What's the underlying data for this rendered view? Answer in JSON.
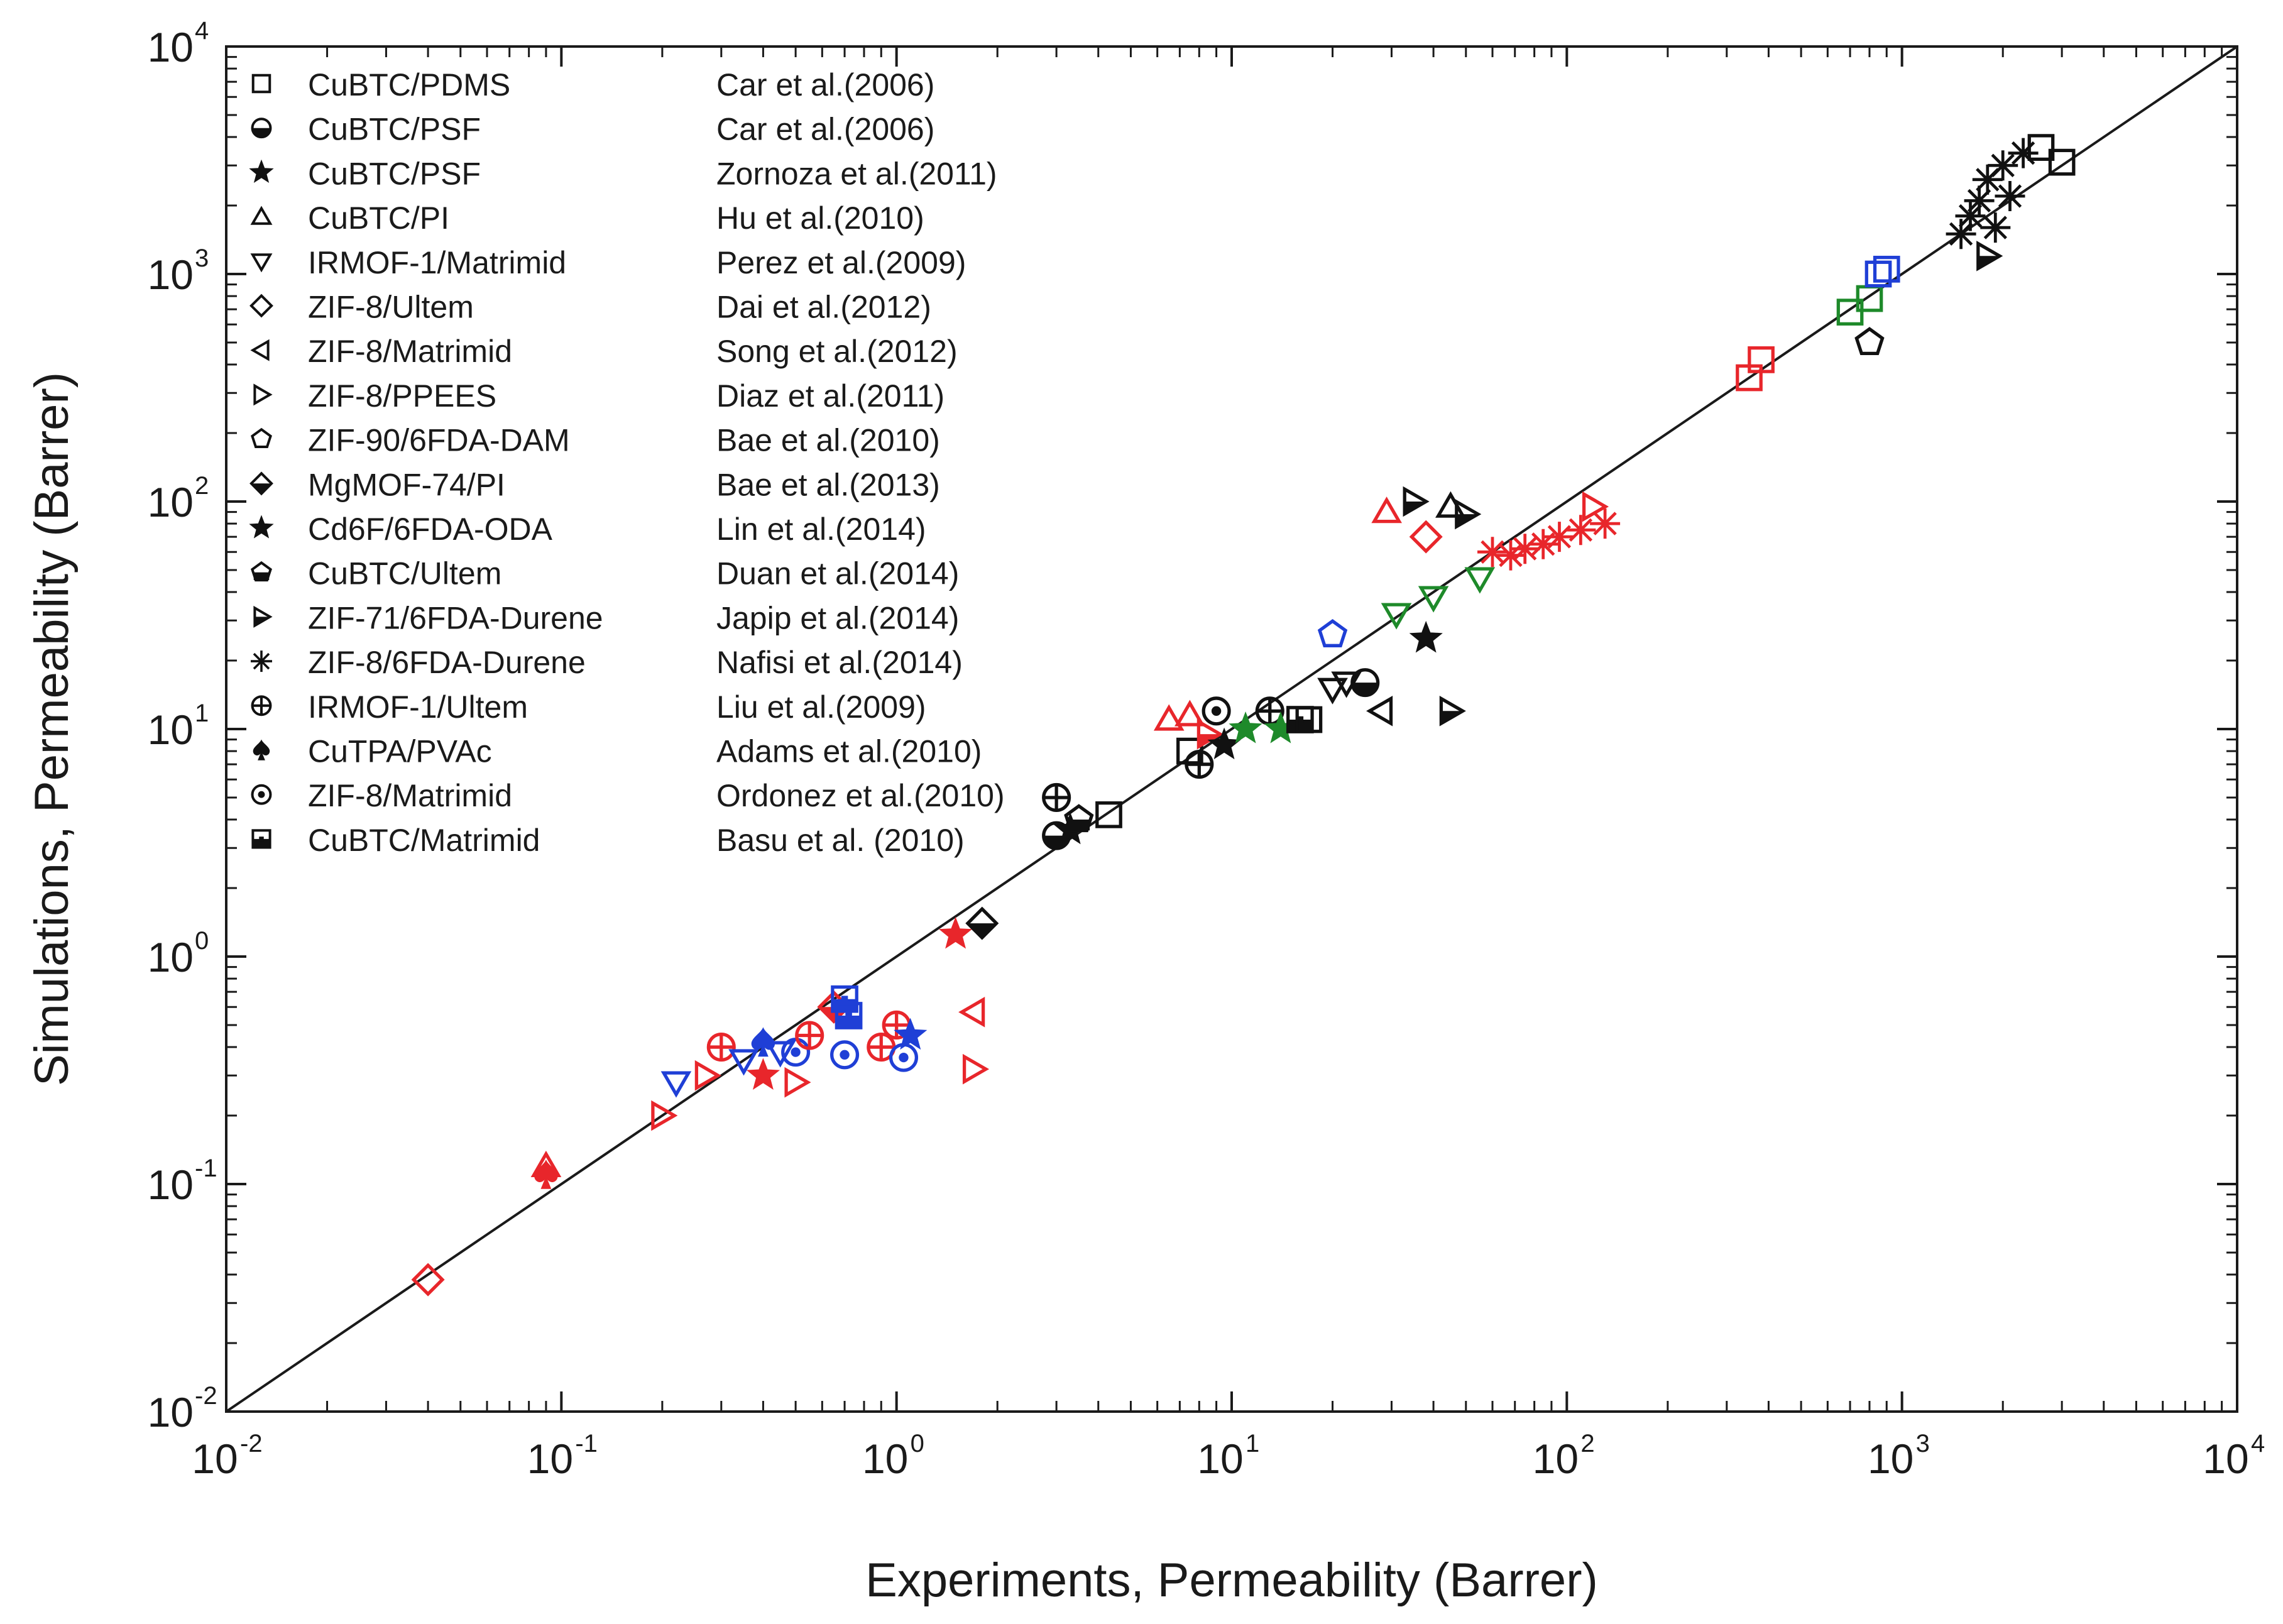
{
  "chart_data": {
    "type": "scatter",
    "title": "",
    "xlabel": "Experiments, Permeability (Barrer)",
    "ylabel": "Simulations, Permeability (Barrer)",
    "xscale": "log",
    "yscale": "log",
    "xlim": [
      0.01,
      10000
    ],
    "ylim": [
      0.01,
      10000
    ],
    "grid": false,
    "legend_position": "top-left",
    "x_ticks": [
      {
        "base": "10",
        "exp": "-2",
        "value": 0.01
      },
      {
        "base": "10",
        "exp": "-1",
        "value": 0.1
      },
      {
        "base": "10",
        "exp": "0",
        "value": 1
      },
      {
        "base": "10",
        "exp": "1",
        "value": 10
      },
      {
        "base": "10",
        "exp": "2",
        "value": 100
      },
      {
        "base": "10",
        "exp": "3",
        "value": 1000
      },
      {
        "base": "10",
        "exp": "4",
        "value": 10000
      }
    ],
    "y_ticks": [
      {
        "base": "10",
        "exp": "-2",
        "value": 0.01
      },
      {
        "base": "10",
        "exp": "-1",
        "value": 0.1
      },
      {
        "base": "10",
        "exp": "0",
        "value": 1
      },
      {
        "base": "10",
        "exp": "1",
        "value": 10
      },
      {
        "base": "10",
        "exp": "2",
        "value": 100
      },
      {
        "base": "10",
        "exp": "3",
        "value": 1000
      },
      {
        "base": "10",
        "exp": "4",
        "value": 10000
      }
    ],
    "parity_line": {
      "from": [
        0.01,
        0.01
      ],
      "to": [
        10000,
        10000
      ]
    },
    "colors": {
      "black": "#111111",
      "red": "#e8262b",
      "blue": "#1f3fd6",
      "green": "#1e8a2a"
    },
    "legend": [
      {
        "label": "CuBTC/PDMS",
        "ref": "Car et al.(2006)",
        "symbol": "square-open-small"
      },
      {
        "label": "CuBTC/PSF",
        "ref": "Car et al.(2006)",
        "symbol": "circle-half"
      },
      {
        "label": "CuBTC/PSF",
        "ref": "Zornoza et al.(2011)",
        "symbol": "star-filled"
      },
      {
        "label": "CuBTC/PI",
        "ref": "Hu et al.(2010)",
        "symbol": "triangle-up-open"
      },
      {
        "label": "IRMOF-1/Matrimid",
        "ref": "Perez et al.(2009)",
        "symbol": "triangle-down-open"
      },
      {
        "label": "ZIF-8/Ultem",
        "ref": "Dai et al.(2012)",
        "symbol": "diamond-open"
      },
      {
        "label": "ZIF-8/Matrimid",
        "ref": "Song et al.(2012)",
        "symbol": "triangle-left-open"
      },
      {
        "label": "ZIF-8/PPEES",
        "ref": "Diaz et al.(2011)",
        "symbol": "triangle-right-open"
      },
      {
        "label": "ZIF-90/6FDA-DAM",
        "ref": "Bae et al.(2010)",
        "symbol": "pentagon-open"
      },
      {
        "label": "MgMOF-74/PI",
        "ref": "Bae et al.(2013)",
        "symbol": "diamond-half"
      },
      {
        "label": "Cd6F/6FDA-ODA",
        "ref": "Lin et al.(2014)",
        "symbol": "star-filled"
      },
      {
        "label": "CuBTC/Ultem",
        "ref": "Duan et al.(2014)",
        "symbol": "pentagon-half"
      },
      {
        "label": "ZIF-71/6FDA-Durene",
        "ref": "Japip et al.(2014)",
        "symbol": "triangle-right-half"
      },
      {
        "label": "ZIF-8/6FDA-Durene",
        "ref": "Nafisi et al.(2014)",
        "symbol": "asterisk"
      },
      {
        "label": "IRMOF-1/Ultem",
        "ref": "Liu et al.(2009)",
        "symbol": "circle-cross"
      },
      {
        "label": "CuTPA/PVAc",
        "ref": "Adams et al.(2010)",
        "symbol": "spade"
      },
      {
        "label": "ZIF-8/Matrimid",
        "ref": "Ordonez et al.(2010)",
        "symbol": "circle-dot"
      },
      {
        "label": "CuBTC/Matrimid",
        "ref": "Basu et al. (2010)",
        "symbol": "square-dot"
      }
    ],
    "points": [
      {
        "x": 0.04,
        "y": 0.038,
        "symbol": "diamond-open",
        "color": "red"
      },
      {
        "x": 0.09,
        "y": 0.12,
        "symbol": "triangle-up-open",
        "color": "red"
      },
      {
        "x": 0.09,
        "y": 0.11,
        "symbol": "spade",
        "color": "red"
      },
      {
        "x": 0.2,
        "y": 0.2,
        "symbol": "triangle-right-open",
        "color": "red"
      },
      {
        "x": 0.22,
        "y": 0.28,
        "symbol": "triangle-down-open",
        "color": "blue"
      },
      {
        "x": 0.27,
        "y": 0.3,
        "symbol": "triangle-right-open",
        "color": "red"
      },
      {
        "x": 0.3,
        "y": 0.4,
        "symbol": "circle-cross",
        "color": "red"
      },
      {
        "x": 0.35,
        "y": 0.35,
        "symbol": "triangle-down-open",
        "color": "blue"
      },
      {
        "x": 0.4,
        "y": 0.3,
        "symbol": "star-filled",
        "color": "red"
      },
      {
        "x": 0.4,
        "y": 0.42,
        "symbol": "spade",
        "color": "blue"
      },
      {
        "x": 0.45,
        "y": 0.38,
        "symbol": "triangle-down-open",
        "color": "blue"
      },
      {
        "x": 0.5,
        "y": 0.28,
        "symbol": "triangle-right-open",
        "color": "red"
      },
      {
        "x": 0.5,
        "y": 0.38,
        "symbol": "circle-dot",
        "color": "blue"
      },
      {
        "x": 0.55,
        "y": 0.45,
        "symbol": "circle-cross",
        "color": "red"
      },
      {
        "x": 0.65,
        "y": 0.6,
        "symbol": "diamond-half",
        "color": "red"
      },
      {
        "x": 0.7,
        "y": 0.37,
        "symbol": "circle-dot",
        "color": "blue"
      },
      {
        "x": 0.7,
        "y": 0.65,
        "symbol": "square-dot",
        "color": "blue"
      },
      {
        "x": 0.72,
        "y": 0.55,
        "symbol": "square-dot",
        "color": "blue"
      },
      {
        "x": 0.9,
        "y": 0.4,
        "symbol": "circle-cross",
        "color": "red"
      },
      {
        "x": 1.0,
        "y": 0.5,
        "symbol": "circle-cross",
        "color": "red"
      },
      {
        "x": 1.05,
        "y": 0.36,
        "symbol": "circle-dot",
        "color": "blue"
      },
      {
        "x": 1.1,
        "y": 0.45,
        "symbol": "star-filled",
        "color": "blue"
      },
      {
        "x": 1.5,
        "y": 1.25,
        "symbol": "star-filled",
        "color": "red"
      },
      {
        "x": 1.7,
        "y": 0.32,
        "symbol": "triangle-right-open",
        "color": "red"
      },
      {
        "x": 1.7,
        "y": 0.57,
        "symbol": "triangle-left-open",
        "color": "red"
      },
      {
        "x": 1.8,
        "y": 1.4,
        "symbol": "diamond-half",
        "color": "black"
      },
      {
        "x": 3.0,
        "y": 3.4,
        "symbol": "circle-half",
        "color": "black"
      },
      {
        "x": 3.0,
        "y": 5.0,
        "symbol": "circle-cross",
        "color": "black"
      },
      {
        "x": 3.3,
        "y": 3.6,
        "symbol": "star-filled",
        "color": "black"
      },
      {
        "x": 3.5,
        "y": 4.0,
        "symbol": "pentagon-half",
        "color": "black"
      },
      {
        "x": 4.3,
        "y": 4.2,
        "symbol": "square-open-small",
        "color": "black"
      },
      {
        "x": 6.5,
        "y": 11.0,
        "symbol": "triangle-up-open",
        "color": "red"
      },
      {
        "x": 7.5,
        "y": 11.5,
        "symbol": "triangle-up-open",
        "color": "red"
      },
      {
        "x": 7.5,
        "y": 8.0,
        "symbol": "square-open-small",
        "color": "black"
      },
      {
        "x": 8.0,
        "y": 7.0,
        "symbol": "circle-cross",
        "color": "black"
      },
      {
        "x": 8.5,
        "y": 9.5,
        "symbol": "triangle-right-half",
        "color": "red"
      },
      {
        "x": 9.0,
        "y": 12.0,
        "symbol": "circle-dot",
        "color": "black"
      },
      {
        "x": 9.5,
        "y": 8.5,
        "symbol": "star-filled",
        "color": "black"
      },
      {
        "x": 11.0,
        "y": 10.0,
        "symbol": "star-filled",
        "color": "green"
      },
      {
        "x": 13.0,
        "y": 12.0,
        "symbol": "circle-cross",
        "color": "black"
      },
      {
        "x": 14.0,
        "y": 10.0,
        "symbol": "star-filled",
        "color": "green"
      },
      {
        "x": 16.0,
        "y": 11.0,
        "symbol": "square-dot",
        "color": "black"
      },
      {
        "x": 17.0,
        "y": 11.0,
        "symbol": "square-open-small",
        "color": "black"
      },
      {
        "x": 20.0,
        "y": 26.0,
        "symbol": "pentagon-open",
        "color": "blue"
      },
      {
        "x": 20.0,
        "y": 15.0,
        "symbol": "triangle-down-open",
        "color": "black"
      },
      {
        "x": 22.0,
        "y": 16.0,
        "symbol": "triangle-down-open",
        "color": "black"
      },
      {
        "x": 25.0,
        "y": 16.0,
        "symbol": "circle-half",
        "color": "black"
      },
      {
        "x": 28.0,
        "y": 12.0,
        "symbol": "triangle-left-open",
        "color": "black"
      },
      {
        "x": 29.0,
        "y": 90.0,
        "symbol": "triangle-up-open",
        "color": "red"
      },
      {
        "x": 31.0,
        "y": 32.0,
        "symbol": "triangle-down-open",
        "color": "green"
      },
      {
        "x": 35.0,
        "y": 100.0,
        "symbol": "triangle-right-half",
        "color": "black"
      },
      {
        "x": 38.0,
        "y": 70.0,
        "symbol": "diamond-open",
        "color": "red"
      },
      {
        "x": 38.0,
        "y": 25.0,
        "symbol": "star-filled",
        "color": "black"
      },
      {
        "x": 40.0,
        "y": 38.0,
        "symbol": "triangle-down-open",
        "color": "green"
      },
      {
        "x": 45.0,
        "y": 12.0,
        "symbol": "triangle-right-half",
        "color": "black"
      },
      {
        "x": 45.0,
        "y": 95.0,
        "symbol": "triangle-up-open",
        "color": "black"
      },
      {
        "x": 50.0,
        "y": 88.0,
        "symbol": "triangle-right-half",
        "color": "black"
      },
      {
        "x": 55.0,
        "y": 46.0,
        "symbol": "triangle-down-open",
        "color": "green"
      },
      {
        "x": 60.0,
        "y": 60.0,
        "symbol": "asterisk",
        "color": "red"
      },
      {
        "x": 68.0,
        "y": 58.0,
        "symbol": "asterisk",
        "color": "red"
      },
      {
        "x": 75.0,
        "y": 62.0,
        "symbol": "asterisk",
        "color": "red"
      },
      {
        "x": 85.0,
        "y": 65.0,
        "symbol": "asterisk",
        "color": "red"
      },
      {
        "x": 95.0,
        "y": 70.0,
        "symbol": "asterisk",
        "color": "red"
      },
      {
        "x": 110.0,
        "y": 75.0,
        "symbol": "asterisk",
        "color": "red"
      },
      {
        "x": 120.0,
        "y": 95.0,
        "symbol": "triangle-right-open",
        "color": "red"
      },
      {
        "x": 130.0,
        "y": 80.0,
        "symbol": "asterisk",
        "color": "red"
      },
      {
        "x": 350.0,
        "y": 350.0,
        "symbol": "square-open-small",
        "color": "red"
      },
      {
        "x": 380.0,
        "y": 420.0,
        "symbol": "square-open-small",
        "color": "red"
      },
      {
        "x": 700.0,
        "y": 680.0,
        "symbol": "square-open-small",
        "color": "green"
      },
      {
        "x": 800.0,
        "y": 500.0,
        "symbol": "pentagon-open",
        "color": "black"
      },
      {
        "x": 800.0,
        "y": 780.0,
        "symbol": "square-open-small",
        "color": "green"
      },
      {
        "x": 850.0,
        "y": 1000.0,
        "symbol": "square-open-small",
        "color": "blue"
      },
      {
        "x": 900.0,
        "y": 1050.0,
        "symbol": "square-open-small",
        "color": "blue"
      },
      {
        "x": 1500.0,
        "y": 1500.0,
        "symbol": "asterisk",
        "color": "black"
      },
      {
        "x": 1600.0,
        "y": 1800.0,
        "symbol": "asterisk",
        "color": "black"
      },
      {
        "x": 1700.0,
        "y": 2100.0,
        "symbol": "asterisk",
        "color": "black"
      },
      {
        "x": 1800.0,
        "y": 1200.0,
        "symbol": "triangle-right-half",
        "color": "black"
      },
      {
        "x": 1800.0,
        "y": 2600.0,
        "symbol": "asterisk",
        "color": "black"
      },
      {
        "x": 1900.0,
        "y": 1600.0,
        "symbol": "asterisk",
        "color": "black"
      },
      {
        "x": 2000.0,
        "y": 3000.0,
        "symbol": "asterisk",
        "color": "black"
      },
      {
        "x": 2100.0,
        "y": 2200.0,
        "symbol": "asterisk",
        "color": "black"
      },
      {
        "x": 2300.0,
        "y": 3400.0,
        "symbol": "asterisk",
        "color": "black"
      },
      {
        "x": 2600.0,
        "y": 3600.0,
        "symbol": "square-open-small",
        "color": "black"
      },
      {
        "x": 3000.0,
        "y": 3100.0,
        "symbol": "square-open-small",
        "color": "black"
      }
    ]
  }
}
